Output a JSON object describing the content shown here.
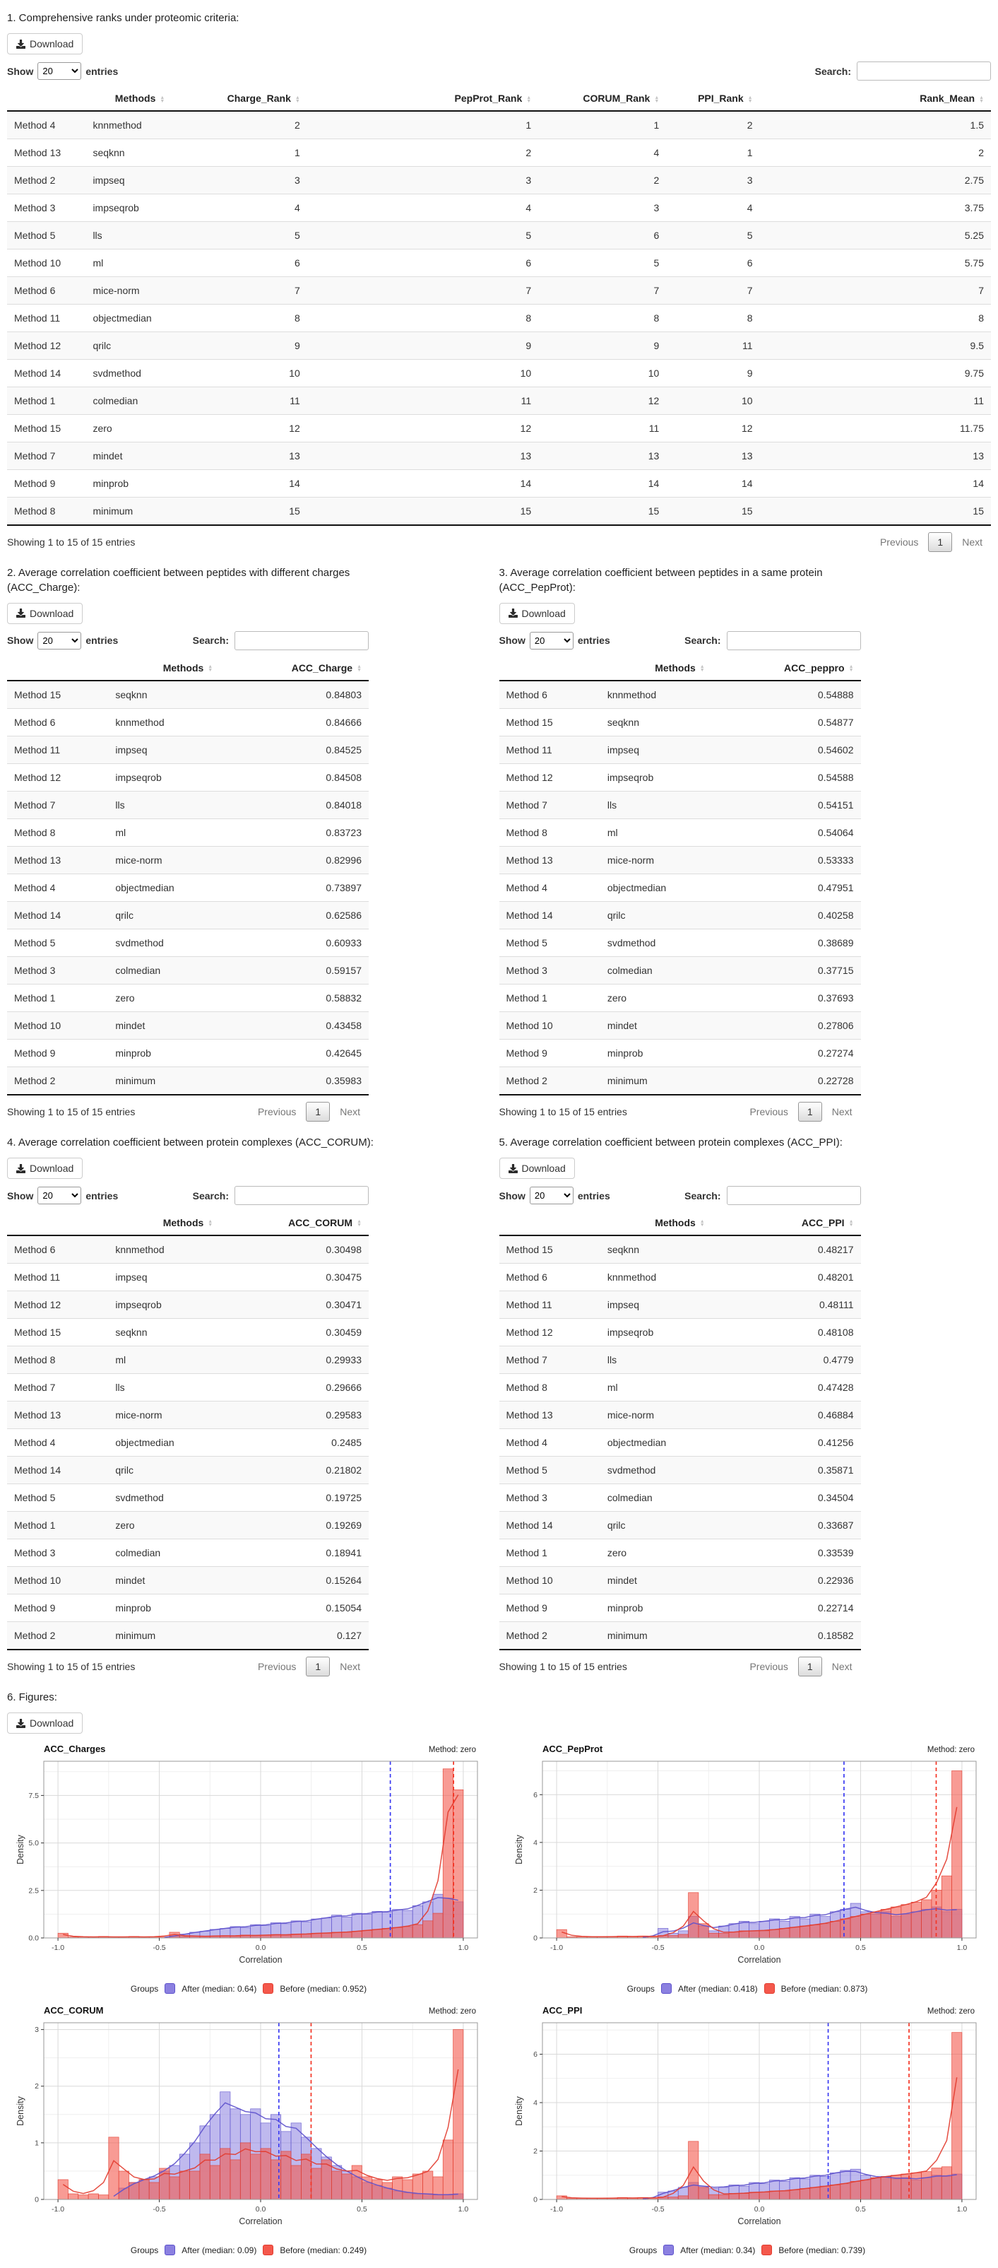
{
  "ui": {
    "download_label": "Download",
    "show_label": "Show",
    "page_size": "20",
    "entries_label": "entries",
    "search_label": "Search:",
    "info_text": "Showing 1 to 15 of 15 entries",
    "prev_label": "Previous",
    "page_number": "1",
    "next_label": "Next"
  },
  "colors": {
    "after_fill": "#8b80e0",
    "after_stroke": "#5d51cc",
    "before_fill": "#f4584c",
    "before_stroke": "#e23b2d",
    "median_after": "#3a3af2",
    "median_before": "#f43424",
    "grid_major": "#d9d9d9",
    "grid_minor": "#efefef",
    "panel_border": "#999999"
  },
  "sections": {
    "ranks": {
      "title": "1. Comprehensive ranks under proteomic criteria:",
      "columns": [
        "",
        "Methods",
        "Charge_Rank",
        "PepProt_Rank",
        "CORUM_Rank",
        "PPI_Rank",
        "Rank_Mean"
      ],
      "rows": [
        [
          "Method 4",
          "knnmethod",
          "2",
          "1",
          "1",
          "2",
          "1.5"
        ],
        [
          "Method 13",
          "seqknn",
          "1",
          "2",
          "4",
          "1",
          "2"
        ],
        [
          "Method 2",
          "impseq",
          "3",
          "3",
          "2",
          "3",
          "2.75"
        ],
        [
          "Method 3",
          "impseqrob",
          "4",
          "4",
          "3",
          "4",
          "3.75"
        ],
        [
          "Method 5",
          "lls",
          "5",
          "5",
          "6",
          "5",
          "5.25"
        ],
        [
          "Method 10",
          "ml",
          "6",
          "6",
          "5",
          "6",
          "5.75"
        ],
        [
          "Method 6",
          "mice-norm",
          "7",
          "7",
          "7",
          "7",
          "7"
        ],
        [
          "Method 11",
          "objectmedian",
          "8",
          "8",
          "8",
          "8",
          "8"
        ],
        [
          "Method 12",
          "qrilc",
          "9",
          "9",
          "9",
          "11",
          "9.5"
        ],
        [
          "Method 14",
          "svdmethod",
          "10",
          "10",
          "10",
          "9",
          "9.75"
        ],
        [
          "Method 1",
          "colmedian",
          "11",
          "11",
          "12",
          "10",
          "11"
        ],
        [
          "Method 15",
          "zero",
          "12",
          "12",
          "11",
          "12",
          "11.75"
        ],
        [
          "Method 7",
          "mindet",
          "13",
          "13",
          "13",
          "13",
          "13"
        ],
        [
          "Method 9",
          "minprob",
          "14",
          "14",
          "14",
          "14",
          "14"
        ],
        [
          "Method 8",
          "minimum",
          "15",
          "15",
          "15",
          "15",
          "15"
        ]
      ]
    },
    "acc_charge": {
      "title": "2. Average correlation coefficient between peptides with different charges (ACC_Charge):",
      "columns": [
        "",
        "Methods",
        "ACC_Charge"
      ],
      "rows": [
        [
          "Method 15",
          "seqknn",
          "0.84803"
        ],
        [
          "Method 6",
          "knnmethod",
          "0.84666"
        ],
        [
          "Method 11",
          "impseq",
          "0.84525"
        ],
        [
          "Method 12",
          "impseqrob",
          "0.84508"
        ],
        [
          "Method 7",
          "lls",
          "0.84018"
        ],
        [
          "Method 8",
          "ml",
          "0.83723"
        ],
        [
          "Method 13",
          "mice-norm",
          "0.82996"
        ],
        [
          "Method 4",
          "objectmedian",
          "0.73897"
        ],
        [
          "Method 14",
          "qrilc",
          "0.62586"
        ],
        [
          "Method 5",
          "svdmethod",
          "0.60933"
        ],
        [
          "Method 3",
          "colmedian",
          "0.59157"
        ],
        [
          "Method 1",
          "zero",
          "0.58832"
        ],
        [
          "Method 10",
          "mindet",
          "0.43458"
        ],
        [
          "Method 9",
          "minprob",
          "0.42645"
        ],
        [
          "Method 2",
          "minimum",
          "0.35983"
        ]
      ]
    },
    "acc_pepprot": {
      "title": "3. Average correlation coefficient between peptides in a same protein (ACC_PepProt):",
      "columns": [
        "",
        "Methods",
        "ACC_peppro"
      ],
      "rows": [
        [
          "Method 6",
          "knnmethod",
          "0.54888"
        ],
        [
          "Method 15",
          "seqknn",
          "0.54877"
        ],
        [
          "Method 11",
          "impseq",
          "0.54602"
        ],
        [
          "Method 12",
          "impseqrob",
          "0.54588"
        ],
        [
          "Method 7",
          "lls",
          "0.54151"
        ],
        [
          "Method 8",
          "ml",
          "0.54064"
        ],
        [
          "Method 13",
          "mice-norm",
          "0.53333"
        ],
        [
          "Method 4",
          "objectmedian",
          "0.47951"
        ],
        [
          "Method 14",
          "qrilc",
          "0.40258"
        ],
        [
          "Method 5",
          "svdmethod",
          "0.38689"
        ],
        [
          "Method 3",
          "colmedian",
          "0.37715"
        ],
        [
          "Method 1",
          "zero",
          "0.37693"
        ],
        [
          "Method 10",
          "mindet",
          "0.27806"
        ],
        [
          "Method 9",
          "minprob",
          "0.27274"
        ],
        [
          "Method 2",
          "minimum",
          "0.22728"
        ]
      ]
    },
    "acc_corum": {
      "title": "4. Average correlation coefficient between protein complexes (ACC_CORUM):",
      "columns": [
        "",
        "Methods",
        "ACC_CORUM"
      ],
      "rows": [
        [
          "Method 6",
          "knnmethod",
          "0.30498"
        ],
        [
          "Method 11",
          "impseq",
          "0.30475"
        ],
        [
          "Method 12",
          "impseqrob",
          "0.30471"
        ],
        [
          "Method 15",
          "seqknn",
          "0.30459"
        ],
        [
          "Method 8",
          "ml",
          "0.29933"
        ],
        [
          "Method 7",
          "lls",
          "0.29666"
        ],
        [
          "Method 13",
          "mice-norm",
          "0.29583"
        ],
        [
          "Method 4",
          "objectmedian",
          "0.2485"
        ],
        [
          "Method 14",
          "qrilc",
          "0.21802"
        ],
        [
          "Method 5",
          "svdmethod",
          "0.19725"
        ],
        [
          "Method 1",
          "zero",
          "0.19269"
        ],
        [
          "Method 3",
          "colmedian",
          "0.18941"
        ],
        [
          "Method 10",
          "mindet",
          "0.15264"
        ],
        [
          "Method 9",
          "minprob",
          "0.15054"
        ],
        [
          "Method 2",
          "minimum",
          "0.127"
        ]
      ]
    },
    "acc_ppi": {
      "title": "5. Average correlation coefficient between protein complexes (ACC_PPI):",
      "columns": [
        "",
        "Methods",
        "ACC_PPI"
      ],
      "rows": [
        [
          "Method 15",
          "seqknn",
          "0.48217"
        ],
        [
          "Method 6",
          "knnmethod",
          "0.48201"
        ],
        [
          "Method 11",
          "impseq",
          "0.48111"
        ],
        [
          "Method 12",
          "impseqrob",
          "0.48108"
        ],
        [
          "Method 7",
          "lls",
          "0.4779"
        ],
        [
          "Method 8",
          "ml",
          "0.47428"
        ],
        [
          "Method 13",
          "mice-norm",
          "0.46884"
        ],
        [
          "Method 4",
          "objectmedian",
          "0.41256"
        ],
        [
          "Method 5",
          "svdmethod",
          "0.35871"
        ],
        [
          "Method 3",
          "colmedian",
          "0.34504"
        ],
        [
          "Method 14",
          "qrilc",
          "0.33687"
        ],
        [
          "Method 1",
          "zero",
          "0.33539"
        ],
        [
          "Method 10",
          "mindet",
          "0.22936"
        ],
        [
          "Method 9",
          "minprob",
          "0.22714"
        ],
        [
          "Method 2",
          "minimum",
          "0.18582"
        ]
      ]
    },
    "figures": {
      "title": "6. Figures:"
    }
  },
  "chart_data": [
    {
      "type": "bar",
      "subtype": "overlaid-histogram-with-density",
      "title": "ACC_Charges",
      "method_label": "Method: zero",
      "xlabel": "Correlation",
      "ylabel": "Density",
      "xlim": [
        -1.07,
        1.07
      ],
      "ylim": [
        0,
        9.3
      ],
      "xticks": [
        -1.0,
        -0.5,
        0.0,
        0.5,
        1.0
      ],
      "xtick_labels": [
        "-1.0",
        "-0.5",
        "0.0",
        "0.5",
        "1.0"
      ],
      "yticks": [
        0,
        2.5,
        5,
        7.5
      ],
      "ytick_labels": [
        "0.0",
        "2.5",
        "5.0",
        "7.5"
      ],
      "bins": {
        "start": -1.0,
        "width": 0.05
      },
      "series": [
        {
          "name": "After",
          "values": [
            0,
            0,
            0,
            0,
            0,
            0,
            0,
            0,
            0,
            0,
            0,
            0.1,
            0.2,
            0.3,
            0.35,
            0.45,
            0.5,
            0.6,
            0.55,
            0.7,
            0.65,
            0.8,
            0.75,
            0.9,
            0.85,
            1.0,
            1.05,
            1.2,
            1.1,
            1.3,
            1.25,
            1.4,
            1.35,
            1.5,
            1.45,
            1.7,
            1.9,
            2.3,
            2.1,
            1.9
          ]
        },
        {
          "name": "Before",
          "values": [
            0.25,
            0.05,
            0.05,
            0.05,
            0.08,
            0.05,
            0.05,
            0.08,
            0.05,
            0.05,
            0.05,
            0.3,
            0.08,
            0.1,
            0.08,
            0.1,
            0.12,
            0.1,
            0.15,
            0.12,
            0.15,
            0.18,
            0.15,
            0.2,
            0.2,
            0.25,
            0.25,
            0.3,
            0.3,
            0.35,
            0.4,
            0.45,
            0.5,
            0.55,
            0.6,
            0.7,
            0.9,
            1.3,
            8.9,
            7.8
          ]
        }
      ],
      "medians": {
        "after": 0.64,
        "before": 0.952
      },
      "legend": {
        "title": "Groups",
        "after_label": "After (median: 0.64)",
        "before_label": "Before (median: 0.952)"
      }
    },
    {
      "type": "bar",
      "subtype": "overlaid-histogram-with-density",
      "title": "ACC_PepProt",
      "method_label": "Method: zero",
      "xlabel": "Correlation",
      "ylabel": "Density",
      "xlim": [
        -1.07,
        1.07
      ],
      "ylim": [
        0,
        7.4
      ],
      "xticks": [
        -1.0,
        -0.5,
        0.0,
        0.5,
        1.0
      ],
      "xtick_labels": [
        "-1.0",
        "-0.5",
        "0.0",
        "0.5",
        "1.0"
      ],
      "yticks": [
        0,
        2,
        4,
        6
      ],
      "ytick_labels": [
        "0",
        "2",
        "4",
        "6"
      ],
      "bins": {
        "start": -1.0,
        "width": 0.05
      },
      "series": [
        {
          "name": "After",
          "values": [
            0,
            0,
            0,
            0,
            0,
            0,
            0,
            0,
            0,
            0,
            0.4,
            0.2,
            0.3,
            0.9,
            0.5,
            0.3,
            0.5,
            0.6,
            0.7,
            0.6,
            0.7,
            0.8,
            0.7,
            0.9,
            0.8,
            1.0,
            0.9,
            1.1,
            1.2,
            1.45,
            1.1,
            1.0,
            1.1,
            0.9,
            1.0,
            1.1,
            1.2,
            1.3,
            1.1,
            1.2
          ]
        },
        {
          "name": "Before",
          "values": [
            0.35,
            0.05,
            0.05,
            0.05,
            0.05,
            0.05,
            0.08,
            0.05,
            0.08,
            0.05,
            0.1,
            0.1,
            0.15,
            1.9,
            0.6,
            0.2,
            0.2,
            0.25,
            0.3,
            0.3,
            0.3,
            0.35,
            0.4,
            0.45,
            0.5,
            0.55,
            0.6,
            0.7,
            0.8,
            0.9,
            1.0,
            1.1,
            1.2,
            1.3,
            1.4,
            1.5,
            1.6,
            2.0,
            2.6,
            7.0
          ]
        }
      ],
      "medians": {
        "after": 0.418,
        "before": 0.873
      },
      "legend": {
        "title": "Groups",
        "after_label": "After (median: 0.418)",
        "before_label": "Before (median: 0.873)"
      }
    },
    {
      "type": "bar",
      "subtype": "overlaid-histogram-with-density",
      "title": "ACC_CORUM",
      "method_label": "Method: zero",
      "xlabel": "Correlation",
      "ylabel": "Density",
      "xlim": [
        -1.07,
        1.07
      ],
      "ylim": [
        0,
        3.12
      ],
      "xticks": [
        -1.0,
        -0.5,
        0.0,
        0.5,
        1.0
      ],
      "xtick_labels": [
        "-1.0",
        "-0.5",
        "0.0",
        "0.5",
        "1.0"
      ],
      "yticks": [
        0,
        1,
        2,
        3
      ],
      "ytick_labels": [
        "0",
        "1",
        "2",
        "3"
      ],
      "bins": {
        "start": -1.0,
        "width": 0.05
      },
      "series": [
        {
          "name": "After",
          "values": [
            0,
            0,
            0,
            0,
            0,
            0,
            0.2,
            0.3,
            0.35,
            0.4,
            0.5,
            0.6,
            0.8,
            1.0,
            1.3,
            1.5,
            1.9,
            1.6,
            1.5,
            1.6,
            1.35,
            1.5,
            1.2,
            1.35,
            1.1,
            0.9,
            0.75,
            0.6,
            0.5,
            0.4,
            0.3,
            0.25,
            0.2,
            0.15,
            0.12,
            0.1,
            0.1,
            0.08,
            0.08,
            0.1
          ]
        },
        {
          "name": "Before",
          "values": [
            0.35,
            0.1,
            0.08,
            0.1,
            0.08,
            1.1,
            0.5,
            0.3,
            0.35,
            0.3,
            0.55,
            0.4,
            0.5,
            0.5,
            0.8,
            0.6,
            0.9,
            0.7,
            1.0,
            0.8,
            0.9,
            0.7,
            0.85,
            0.6,
            0.8,
            0.55,
            0.7,
            0.5,
            0.45,
            0.6,
            0.4,
            0.35,
            0.3,
            0.4,
            0.35,
            0.45,
            0.5,
            0.4,
            1.05,
            3.0
          ]
        }
      ],
      "medians": {
        "after": 0.09,
        "before": 0.249
      },
      "legend": {
        "title": "Groups",
        "after_label": "After (median: 0.09)",
        "before_label": "Before (median: 0.249)"
      }
    },
    {
      "type": "bar",
      "subtype": "overlaid-histogram-with-density",
      "title": "ACC_PPI",
      "method_label": "Method: zero",
      "xlabel": "Correlation",
      "ylabel": "Density",
      "xlim": [
        -1.07,
        1.07
      ],
      "ylim": [
        0,
        7.3
      ],
      "xticks": [
        -1.0,
        -0.5,
        0.0,
        0.5,
        1.0
      ],
      "xtick_labels": [
        "-1.0",
        "-0.5",
        "0.0",
        "0.5",
        "1.0"
      ],
      "yticks": [
        0,
        2,
        4,
        6
      ],
      "ytick_labels": [
        "0",
        "2",
        "4",
        "6"
      ],
      "bins": {
        "start": -1.0,
        "width": 0.05
      },
      "series": [
        {
          "name": "After",
          "values": [
            0,
            0,
            0,
            0,
            0,
            0,
            0,
            0,
            0,
            0,
            0.3,
            0.35,
            0.5,
            0.7,
            0.55,
            0.45,
            0.5,
            0.6,
            0.55,
            0.7,
            0.65,
            0.8,
            0.75,
            0.9,
            0.85,
            1.0,
            0.95,
            1.1,
            1.2,
            1.25,
            1.0,
            0.9,
            0.95,
            0.85,
            0.9,
            0.8,
            0.9,
            1.0,
            0.95,
            1.05
          ]
        },
        {
          "name": "Before",
          "values": [
            0.15,
            0.05,
            0.05,
            0.05,
            0.05,
            0.05,
            0.08,
            0.05,
            0.08,
            0.05,
            0.1,
            0.1,
            0.15,
            2.4,
            0.5,
            0.2,
            0.2,
            0.25,
            0.25,
            0.3,
            0.3,
            0.35,
            0.35,
            0.4,
            0.45,
            0.5,
            0.55,
            0.6,
            0.65,
            0.75,
            0.8,
            0.9,
            0.95,
            1.0,
            1.05,
            1.1,
            1.15,
            1.3,
            1.35,
            6.9
          ]
        }
      ],
      "medians": {
        "after": 0.34,
        "before": 0.739
      },
      "legend": {
        "title": "Groups",
        "after_label": "After (median: 0.34)",
        "before_label": "Before (median: 0.739)"
      }
    }
  ]
}
